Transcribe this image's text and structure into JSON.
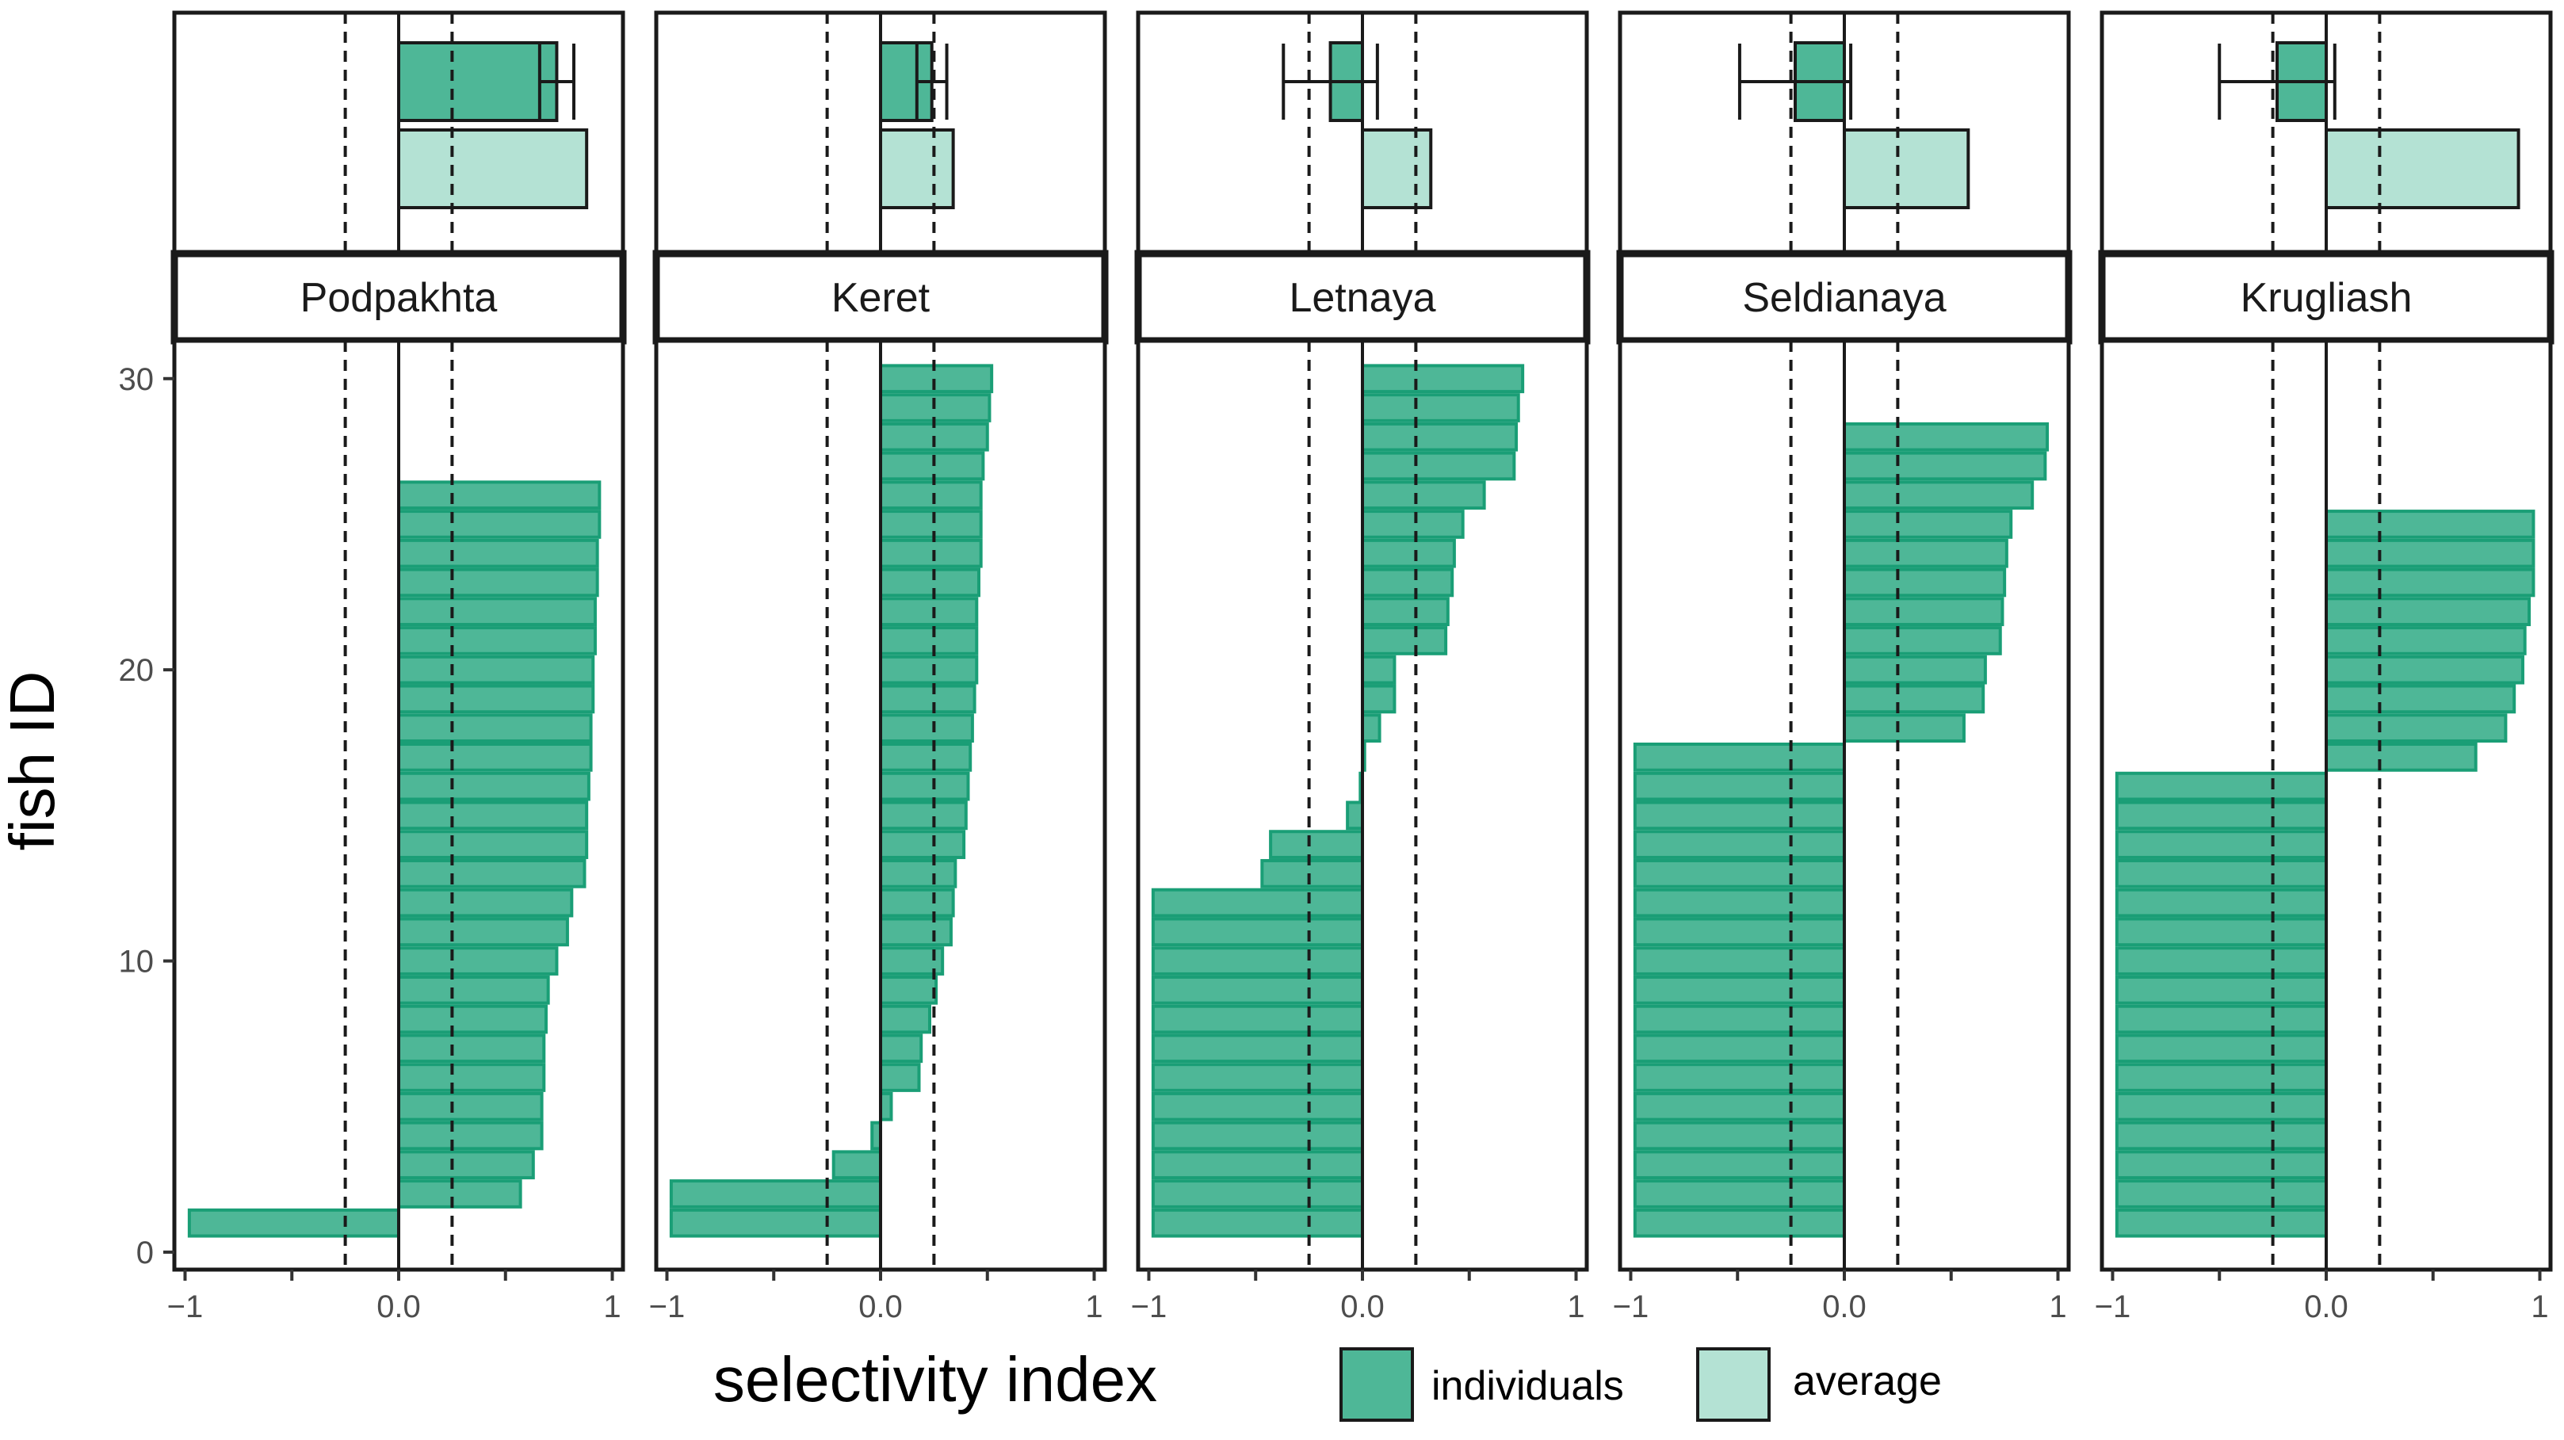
{
  "chart_data": {
    "type": "bar",
    "orientation": "horizontal",
    "xlabel": "selectivity index",
    "ylabel": "fish ID",
    "xlim": [
      -1.05,
      1.05
    ],
    "ylim": [
      -0.6,
      31.3
    ],
    "x_ticks": [
      -1,
      -0.5,
      0,
      0.5,
      1
    ],
    "x_tick_labels": [
      "-1",
      "",
      "0.0",
      "",
      "1"
    ],
    "y_ticks": [
      0,
      10,
      20,
      30
    ],
    "y_tick_labels": [
      "0",
      "10",
      "20",
      "30"
    ],
    "reference_lines": {
      "solid": [
        0
      ],
      "dashed": [
        -0.25,
        0.25
      ]
    },
    "legend": [
      {
        "label": "individuals",
        "color": "#4eb797",
        "border": "#1a9e76"
      },
      {
        "label": "average",
        "color": "#b4e2d4",
        "border": "#1a1a1a"
      }
    ],
    "colors": {
      "individual_fill": "#4eb797",
      "individual_border": "#1a9e76",
      "average_fill": "#b4e2d4",
      "frame": "#1a1a1a"
    },
    "panels": [
      {
        "name": "Podpakhta",
        "summary": {
          "individual_mean": 0.74,
          "individual_err": 0.08,
          "average": 0.88
        },
        "fish": [
          [
            1,
            -0.98
          ],
          [
            2,
            0.57
          ],
          [
            3,
            0.63
          ],
          [
            4,
            0.67
          ],
          [
            5,
            0.67
          ],
          [
            6,
            0.68
          ],
          [
            7,
            0.68
          ],
          [
            8,
            0.69
          ],
          [
            9,
            0.7
          ],
          [
            10,
            0.74
          ],
          [
            11,
            0.79
          ],
          [
            12,
            0.81
          ],
          [
            13,
            0.87
          ],
          [
            14,
            0.88
          ],
          [
            15,
            0.88
          ],
          [
            16,
            0.89
          ],
          [
            17,
            0.9
          ],
          [
            18,
            0.9
          ],
          [
            19,
            0.91
          ],
          [
            20,
            0.91
          ],
          [
            21,
            0.92
          ],
          [
            22,
            0.92
          ],
          [
            23,
            0.93
          ],
          [
            24,
            0.93
          ],
          [
            25,
            0.94
          ],
          [
            26,
            0.94
          ]
        ]
      },
      {
        "name": "Keret",
        "summary": {
          "individual_mean": 0.24,
          "individual_err": 0.07,
          "average": 0.34
        },
        "fish": [
          [
            1,
            -0.98
          ],
          [
            2,
            -0.98
          ],
          [
            3,
            -0.22
          ],
          [
            4,
            -0.04
          ],
          [
            5,
            0.05
          ],
          [
            6,
            0.18
          ],
          [
            7,
            0.19
          ],
          [
            8,
            0.23
          ],
          [
            9,
            0.26
          ],
          [
            10,
            0.29
          ],
          [
            11,
            0.33
          ],
          [
            12,
            0.34
          ],
          [
            13,
            0.35
          ],
          [
            14,
            0.39
          ],
          [
            15,
            0.4
          ],
          [
            16,
            0.41
          ],
          [
            17,
            0.42
          ],
          [
            18,
            0.43
          ],
          [
            19,
            0.44
          ],
          [
            20,
            0.45
          ],
          [
            21,
            0.45
          ],
          [
            22,
            0.45
          ],
          [
            23,
            0.46
          ],
          [
            24,
            0.47
          ],
          [
            25,
            0.47
          ],
          [
            26,
            0.47
          ],
          [
            27,
            0.48
          ],
          [
            28,
            0.5
          ],
          [
            29,
            0.51
          ],
          [
            30,
            0.52
          ]
        ]
      },
      {
        "name": "Letnaya",
        "summary": {
          "individual_mean": -0.15,
          "individual_err": 0.22,
          "average": 0.32
        },
        "fish": [
          [
            1,
            -0.98
          ],
          [
            2,
            -0.98
          ],
          [
            3,
            -0.98
          ],
          [
            4,
            -0.98
          ],
          [
            5,
            -0.98
          ],
          [
            6,
            -0.98
          ],
          [
            7,
            -0.98
          ],
          [
            8,
            -0.98
          ],
          [
            9,
            -0.98
          ],
          [
            10,
            -0.98
          ],
          [
            11,
            -0.98
          ],
          [
            12,
            -0.98
          ],
          [
            13,
            -0.47
          ],
          [
            14,
            -0.43
          ],
          [
            15,
            -0.07
          ],
          [
            16,
            -0.01
          ],
          [
            17,
            0.01
          ],
          [
            18,
            0.08
          ],
          [
            19,
            0.15
          ],
          [
            20,
            0.15
          ],
          [
            21,
            0.39
          ],
          [
            22,
            0.4
          ],
          [
            23,
            0.42
          ],
          [
            24,
            0.43
          ],
          [
            25,
            0.47
          ],
          [
            26,
            0.57
          ],
          [
            27,
            0.71
          ],
          [
            28,
            0.72
          ],
          [
            29,
            0.73
          ],
          [
            30,
            0.75
          ]
        ]
      },
      {
        "name": "Seldianaya",
        "summary": {
          "individual_mean": -0.23,
          "individual_err": 0.26,
          "average": 0.58
        },
        "fish": [
          [
            1,
            -0.98
          ],
          [
            2,
            -0.98
          ],
          [
            3,
            -0.98
          ],
          [
            4,
            -0.98
          ],
          [
            5,
            -0.98
          ],
          [
            6,
            -0.98
          ],
          [
            7,
            -0.98
          ],
          [
            8,
            -0.98
          ],
          [
            9,
            -0.98
          ],
          [
            10,
            -0.98
          ],
          [
            11,
            -0.98
          ],
          [
            12,
            -0.98
          ],
          [
            13,
            -0.98
          ],
          [
            14,
            -0.98
          ],
          [
            15,
            -0.98
          ],
          [
            16,
            -0.98
          ],
          [
            17,
            -0.98
          ],
          [
            18,
            0.56
          ],
          [
            19,
            0.65
          ],
          [
            20,
            0.66
          ],
          [
            21,
            0.73
          ],
          [
            22,
            0.74
          ],
          [
            23,
            0.75
          ],
          [
            24,
            0.76
          ],
          [
            25,
            0.78
          ],
          [
            26,
            0.88
          ],
          [
            27,
            0.94
          ],
          [
            28,
            0.95
          ]
        ]
      },
      {
        "name": "Krugliash",
        "summary": {
          "individual_mean": -0.23,
          "individual_err": 0.27,
          "average": 0.9
        },
        "fish": [
          [
            1,
            -0.98
          ],
          [
            2,
            -0.98
          ],
          [
            3,
            -0.98
          ],
          [
            4,
            -0.98
          ],
          [
            5,
            -0.98
          ],
          [
            6,
            -0.98
          ],
          [
            7,
            -0.98
          ],
          [
            8,
            -0.98
          ],
          [
            9,
            -0.98
          ],
          [
            10,
            -0.98
          ],
          [
            11,
            -0.98
          ],
          [
            12,
            -0.98
          ],
          [
            13,
            -0.98
          ],
          [
            14,
            -0.98
          ],
          [
            15,
            -0.98
          ],
          [
            16,
            -0.98
          ],
          [
            17,
            0.7
          ],
          [
            18,
            0.84
          ],
          [
            19,
            0.88
          ],
          [
            20,
            0.92
          ],
          [
            21,
            0.93
          ],
          [
            22,
            0.95
          ],
          [
            23,
            0.97
          ],
          [
            24,
            0.97
          ],
          [
            25,
            0.97
          ]
        ]
      }
    ]
  }
}
